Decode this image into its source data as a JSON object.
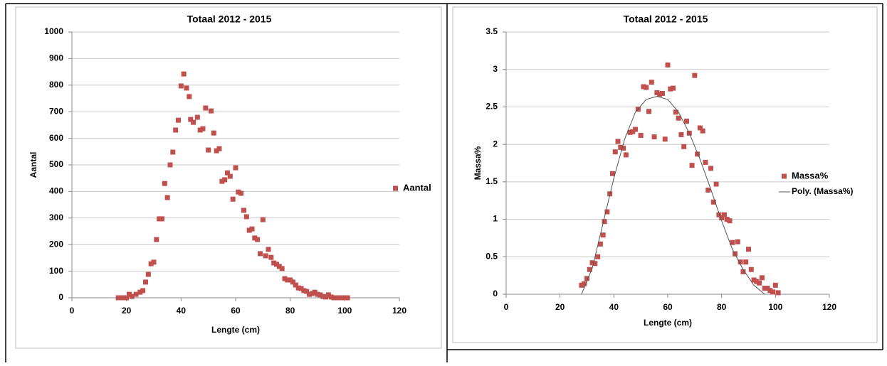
{
  "chart_data": [
    {
      "type": "scatter",
      "title": "Totaal  2012 - 2015",
      "xlabel": "Lengte (cm)",
      "ylabel": "Aantal",
      "xlim": [
        0,
        120
      ],
      "xticks": [
        0,
        20,
        40,
        60,
        80,
        100,
        120
      ],
      "ylim": [
        0,
        1000
      ],
      "yticks": [
        0,
        100,
        200,
        300,
        400,
        500,
        600,
        700,
        800,
        900,
        1000
      ],
      "grid": true,
      "legend": "right",
      "series": [
        {
          "name": "Aantal",
          "color": "#c0504d",
          "x": [
            17,
            18.5,
            20,
            21,
            22,
            23.5,
            25,
            26,
            27,
            28,
            29,
            30,
            31,
            32,
            33,
            34,
            35,
            36,
            37,
            38,
            39,
            40,
            41,
            42,
            43,
            43.5,
            44.5,
            46,
            47,
            48,
            49,
            50,
            51,
            52,
            53,
            54,
            55,
            56,
            57,
            58,
            59,
            60,
            61,
            62,
            63,
            64,
            65,
            66,
            67,
            68,
            69,
            70,
            71,
            72,
            73,
            74,
            75,
            76,
            77,
            78,
            79,
            80,
            81,
            82,
            83,
            84,
            85,
            86,
            87,
            88,
            89,
            90,
            91,
            92,
            93,
            94,
            95,
            96,
            97,
            98,
            99,
            100,
            101
          ],
          "values": [
            0,
            0,
            0,
            13,
            5,
            13,
            21,
            27,
            59,
            88,
            128,
            134,
            219,
            297,
            297,
            430,
            377,
            500,
            548,
            631,
            668,
            797,
            842,
            789,
            757,
            671,
            660,
            679,
            631,
            636,
            714,
            556,
            703,
            620,
            553,
            561,
            438,
            444,
            470,
            457,
            371,
            489,
            398,
            393,
            329,
            305,
            254,
            259,
            225,
            219,
            166,
            294,
            158,
            182,
            152,
            131,
            126,
            118,
            110,
            72,
            67,
            67,
            59,
            48,
            37,
            35,
            27,
            24,
            13,
            16,
            21,
            13,
            11,
            5,
            3,
            11,
            3,
            0,
            0,
            0,
            0,
            0,
            0
          ]
        }
      ]
    },
    {
      "type": "scatter",
      "title": "Totaal  2012 - 2015",
      "xlabel": "Lengte (cm)",
      "ylabel": "Massa%",
      "xlim": [
        0,
        120
      ],
      "xticks": [
        0,
        20,
        40,
        60,
        80,
        100,
        120
      ],
      "ylim": [
        0,
        3.5
      ],
      "yticks": [
        0,
        0.5,
        1,
        1.5,
        2,
        2.5,
        3,
        3.5
      ],
      "grid": true,
      "legend": "right",
      "series": [
        {
          "name": "Massa%",
          "color": "#c0504d",
          "x": [
            28,
            29,
            30,
            31,
            32,
            33,
            34,
            35,
            36,
            36.5,
            37.5,
            38.5,
            39.5,
            40.5,
            41.5,
            42.5,
            43.5,
            44.5,
            46,
            47,
            48,
            49,
            50,
            51,
            52,
            53,
            54,
            55,
            56,
            57,
            58,
            59,
            60,
            61,
            62,
            63,
            64,
            65,
            66,
            67,
            68,
            69,
            70,
            71,
            72,
            73,
            74,
            75,
            76,
            77,
            78,
            79,
            80,
            81,
            82,
            83,
            84,
            85,
            86,
            87,
            88,
            89,
            90,
            91,
            92,
            93,
            94,
            95,
            96,
            97,
            98,
            99,
            100,
            101
          ],
          "values": [
            0.12,
            0.14,
            0.21,
            0.33,
            0.42,
            0.41,
            0.5,
            0.67,
            0.79,
            0.97,
            1.1,
            1.34,
            1.61,
            1.9,
            2.04,
            1.96,
            1.95,
            1.86,
            2.16,
            2.17,
            2.2,
            2.47,
            2.12,
            2.77,
            2.76,
            2.44,
            2.83,
            2.1,
            2.69,
            2.67,
            2.68,
            2.07,
            3.06,
            2.74,
            2.75,
            2.43,
            2.35,
            2.13,
            1.97,
            2.31,
            2.15,
            1.72,
            2.92,
            1.87,
            2.22,
            2.18,
            1.76,
            1.39,
            1.68,
            1.23,
            1.47,
            1.06,
            1.02,
            1.06,
            1,
            0.98,
            0.69,
            0.54,
            0.7,
            0.43,
            0.3,
            0.43,
            0.6,
            0.33,
            0.19,
            0.17,
            0.15,
            0.22,
            0.08,
            0.08,
            0.05,
            0.03,
            0.12,
            0.02
          ]
        },
        {
          "name": "Poly. (Massa%)",
          "color": "#555555",
          "line": true,
          "x": [
            28,
            32,
            36,
            40,
            44,
            48,
            52,
            56,
            60,
            64,
            68,
            72,
            76,
            80,
            84,
            88,
            92,
            96
          ],
          "values": [
            0,
            0.35,
            0.95,
            1.55,
            2.07,
            2.43,
            2.6,
            2.64,
            2.6,
            2.43,
            2.15,
            1.8,
            1.4,
            0.98,
            0.6,
            0.33,
            0.12,
            0
          ]
        }
      ]
    }
  ]
}
